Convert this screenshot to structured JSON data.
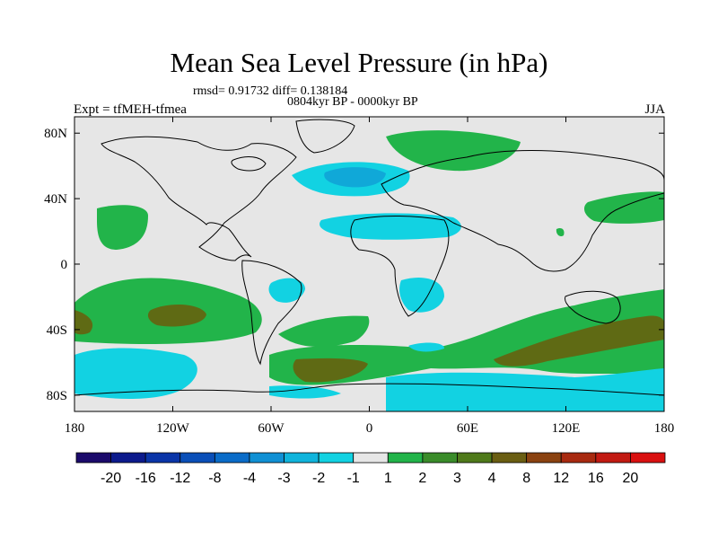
{
  "title": "Mean Sea Level Pressure (in hPa)",
  "stats": "rmsd= 0.91732 diff= 0.138184",
  "period": "0804kyr BP - 0000kyr BP",
  "experiment": "Expt = tfMEH-tfmea",
  "season": "JJA",
  "axes": {
    "x_ticks": [
      "180",
      "120W",
      "60W",
      "0",
      "60E",
      "120E",
      "180"
    ],
    "y_ticks": [
      "80N",
      "40N",
      "0",
      "40S",
      "80S"
    ]
  },
  "colorbar": {
    "labels": [
      "-20",
      "-16",
      "-12",
      "-8",
      "-4",
      "-3",
      "-2",
      "-1",
      "1",
      "2",
      "3",
      "4",
      "8",
      "12",
      "16",
      "20"
    ],
    "colors": [
      "#1b0a6b",
      "#0c1a8c",
      "#0a35a8",
      "#0a4fb8",
      "#0a6cc8",
      "#1090d4",
      "#10b4dc",
      "#12d2e2",
      "#e6e6e6",
      "#22b44a",
      "#3a8c2a",
      "#4f7a1a",
      "#6a5e12",
      "#8a4210",
      "#a82a10",
      "#c21a12",
      "#d91010"
    ]
  },
  "map_colors": {
    "background": "#e6e6e6",
    "cyan": "#12d2e2",
    "blue": "#10a8d8",
    "green": "#22b44a",
    "dark_green": "#4f7a1a",
    "olive": "#5f6a14"
  }
}
